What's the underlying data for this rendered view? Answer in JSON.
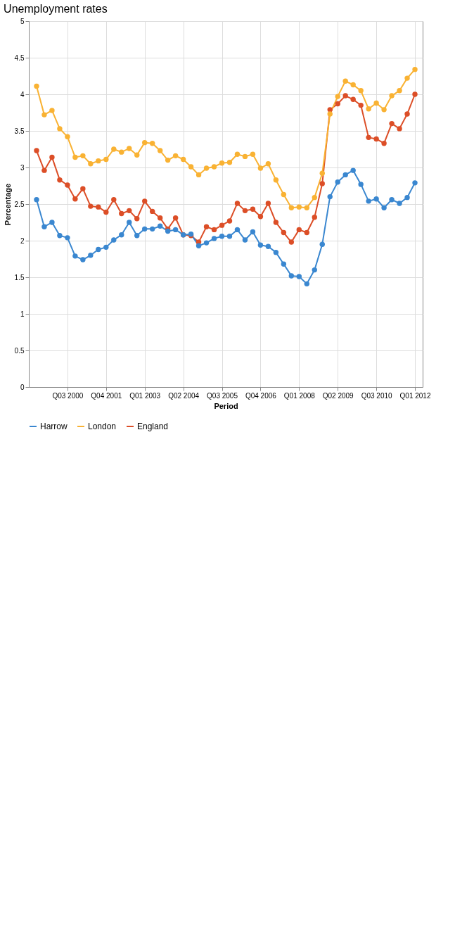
{
  "chart_data": {
    "type": "line",
    "title": "Unemployment rates",
    "xlabel": "Period",
    "ylabel": "Percentage",
    "categories": [
      null,
      null,
      null,
      null,
      "Q03 2000",
      null,
      null,
      null,
      null,
      "Q04 2001",
      null,
      null,
      null,
      null,
      "Q01 2003",
      null,
      null,
      null,
      null,
      "Q02 2004",
      null,
      null,
      null,
      null,
      "Q03 2005",
      null,
      null,
      null,
      null,
      "Q04 2006",
      null,
      null,
      null,
      null,
      "Q01 2008",
      null,
      null,
      null,
      null,
      "Q02 2009",
      null,
      null,
      null,
      null,
      "Q03 2010",
      null,
      null,
      null,
      null,
      "Q01 2012"
    ],
    "series": [
      {
        "name": "Harrow",
        "color": "#3a87d0",
        "values": [
          2.56,
          2.19,
          2.25,
          2.07,
          2.04,
          1.79,
          1.74,
          1.8,
          1.88,
          1.91,
          2.01,
          2.08,
          2.25,
          2.07,
          2.16,
          2.16,
          2.2,
          2.13,
          2.15,
          2.08,
          2.09,
          1.93,
          1.97,
          2.03,
          2.06,
          2.06,
          2.15,
          2.01,
          2.12,
          1.94,
          1.92,
          1.84,
          1.68,
          1.52,
          1.51,
          1.41,
          1.6,
          1.95,
          2.6,
          2.8,
          2.9,
          2.96,
          2.77,
          2.54,
          2.57,
          2.45,
          2.56,
          2.51,
          2.59,
          2.79
        ]
      },
      {
        "name": "London",
        "color": "#f9b233",
        "values": [
          4.11,
          3.72,
          3.78,
          3.53,
          3.42,
          3.14,
          3.16,
          3.05,
          3.09,
          3.11,
          3.25,
          3.21,
          3.26,
          3.17,
          3.34,
          3.33,
          3.23,
          3.1,
          3.16,
          3.11,
          3.01,
          2.9,
          2.99,
          3.01,
          3.06,
          3.07,
          3.18,
          3.15,
          3.18,
          2.99,
          3.05,
          2.83,
          2.63,
          2.45,
          2.46,
          2.45,
          2.59,
          2.92,
          3.73,
          3.97,
          4.18,
          4.13,
          4.05,
          3.8,
          3.88,
          3.79,
          3.98,
          4.05,
          4.22,
          4.34
        ]
      },
      {
        "name": "England",
        "color": "#dc4e27",
        "values": [
          3.23,
          2.96,
          3.14,
          2.83,
          2.76,
          2.57,
          2.71,
          2.47,
          2.46,
          2.39,
          2.56,
          2.37,
          2.41,
          2.3,
          2.54,
          2.4,
          2.31,
          2.16,
          2.31,
          2.08,
          2.07,
          1.98,
          2.19,
          2.15,
          2.21,
          2.27,
          2.51,
          2.41,
          2.43,
          2.33,
          2.51,
          2.25,
          2.11,
          1.98,
          2.15,
          2.11,
          2.32,
          2.78,
          3.79,
          3.87,
          3.98,
          3.93,
          3.85,
          3.41,
          3.39,
          3.33,
          3.6,
          3.53,
          3.73,
          4.0
        ]
      }
    ],
    "ylim": [
      0,
      5
    ],
    "yticks": [
      0,
      0.5,
      1,
      1.5,
      2,
      2.5,
      3,
      3.5,
      4,
      4.5,
      5
    ],
    "grid": true,
    "legend": "bottom",
    "marker": "circle",
    "line_style": "solid"
  }
}
